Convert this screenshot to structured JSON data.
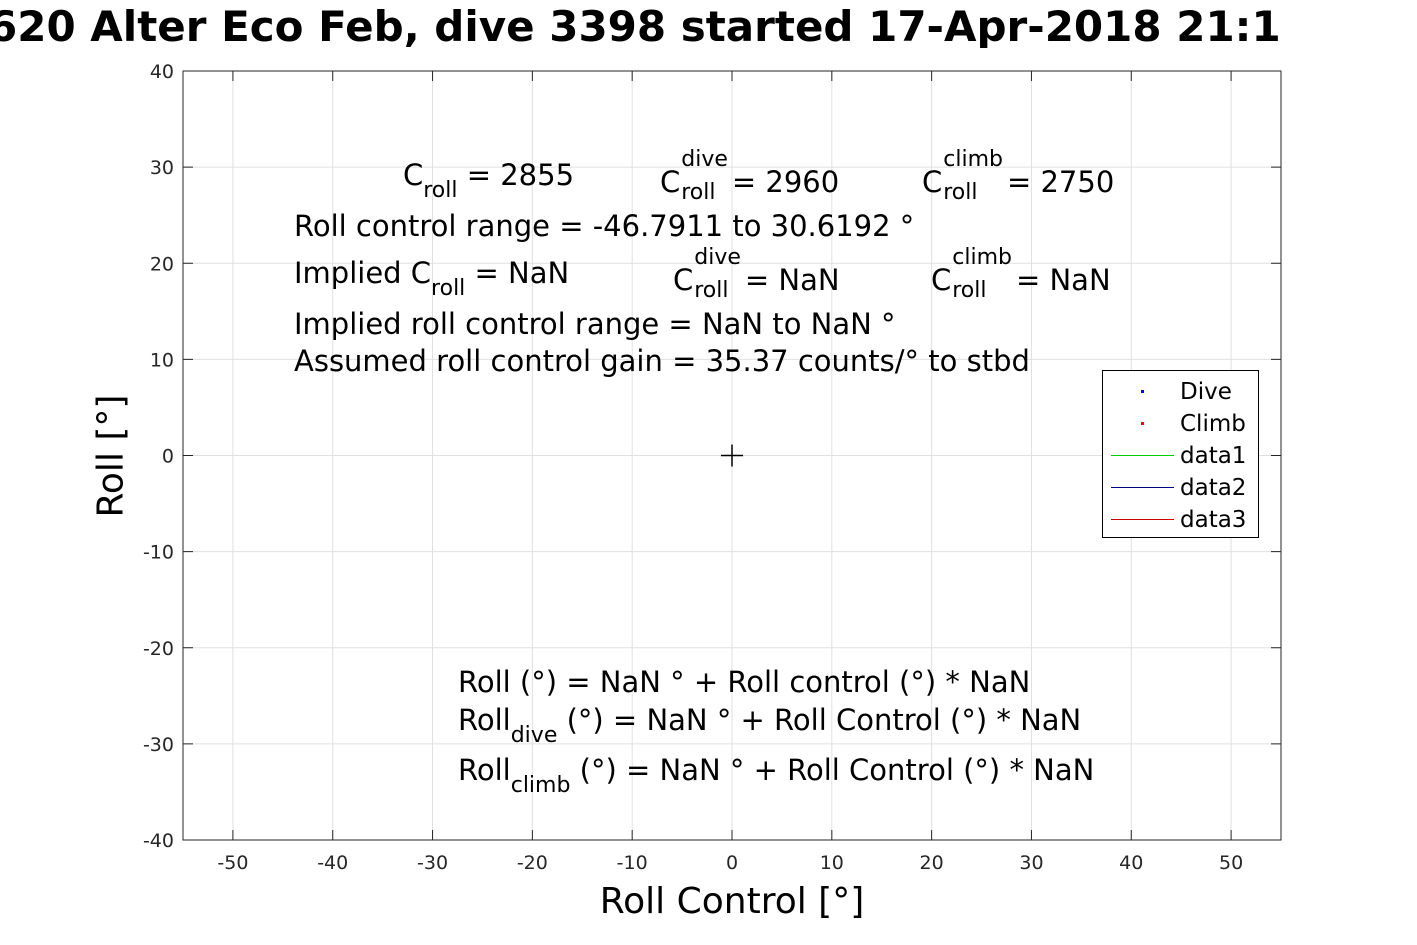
{
  "title": "620 Alter Eco Feb, dive 3398 started 17-Apr-2018 21:1",
  "chart_data": {
    "type": "scatter",
    "xlabel": "Roll Control [°]",
    "ylabel": "Roll [°]",
    "xlim": [
      -55,
      55
    ],
    "ylim": [
      -40,
      40
    ],
    "xticks": [
      -50,
      -40,
      -30,
      -20,
      -10,
      0,
      10,
      20,
      30,
      40,
      50
    ],
    "yticks": [
      -40,
      -30,
      -20,
      -10,
      0,
      10,
      20,
      30,
      40
    ],
    "grid": true,
    "legend_position": "right",
    "series": [
      {
        "name": "Dive",
        "kind": "points",
        "color": "#0000ff",
        "x": [],
        "y": []
      },
      {
        "name": "Climb",
        "kind": "points",
        "color": "#ff0000",
        "x": [],
        "y": []
      },
      {
        "name": "data1",
        "kind": "line",
        "color": "#00cc00",
        "x": [],
        "y": []
      },
      {
        "name": "data2",
        "kind": "line",
        "color": "#000080",
        "x": [],
        "y": []
      },
      {
        "name": "data3",
        "kind": "line",
        "color": "#cc0000",
        "x": [],
        "y": []
      }
    ],
    "marker": {
      "x": 0,
      "y": 0,
      "symbol": "+"
    }
  },
  "annotations": {
    "c_roll": {
      "base": "C",
      "sub": "roll",
      "value": "= 2855"
    },
    "c_dive": {
      "base": "C",
      "sup": "dive",
      "sub": "roll",
      "value": "= 2960"
    },
    "c_climb": {
      "base": "C",
      "sup": "climb",
      "sub": "roll",
      "value": "= 2750"
    },
    "roll_range": "Roll control range = -46.7911 to 30.6192 °",
    "implied_c_roll": {
      "prefix": "Implied C",
      "sub": "roll",
      "value": "=  NaN"
    },
    "implied_c_dive": {
      "base": "C",
      "sup": "dive",
      "sub": "roll",
      "value": "=  NaN"
    },
    "implied_c_climb": {
      "base": "C",
      "sup": "climb",
      "sub": "roll",
      "value": "=  NaN"
    },
    "implied_range": "Implied roll control range = NaN to NaN °",
    "gain": "Assumed roll control gain = 35.37 counts/° to stbd",
    "eq_roll": "Roll (°) = NaN ° + Roll control (°) * NaN",
    "eq_dive": {
      "base": "Roll",
      "sub": "dive",
      "rest": " (°) = NaN ° + Roll Control (°) * NaN"
    },
    "eq_climb": {
      "base": "Roll",
      "sub": "climb",
      "rest": " (°) = NaN ° + Roll Control (°) * NaN"
    }
  }
}
